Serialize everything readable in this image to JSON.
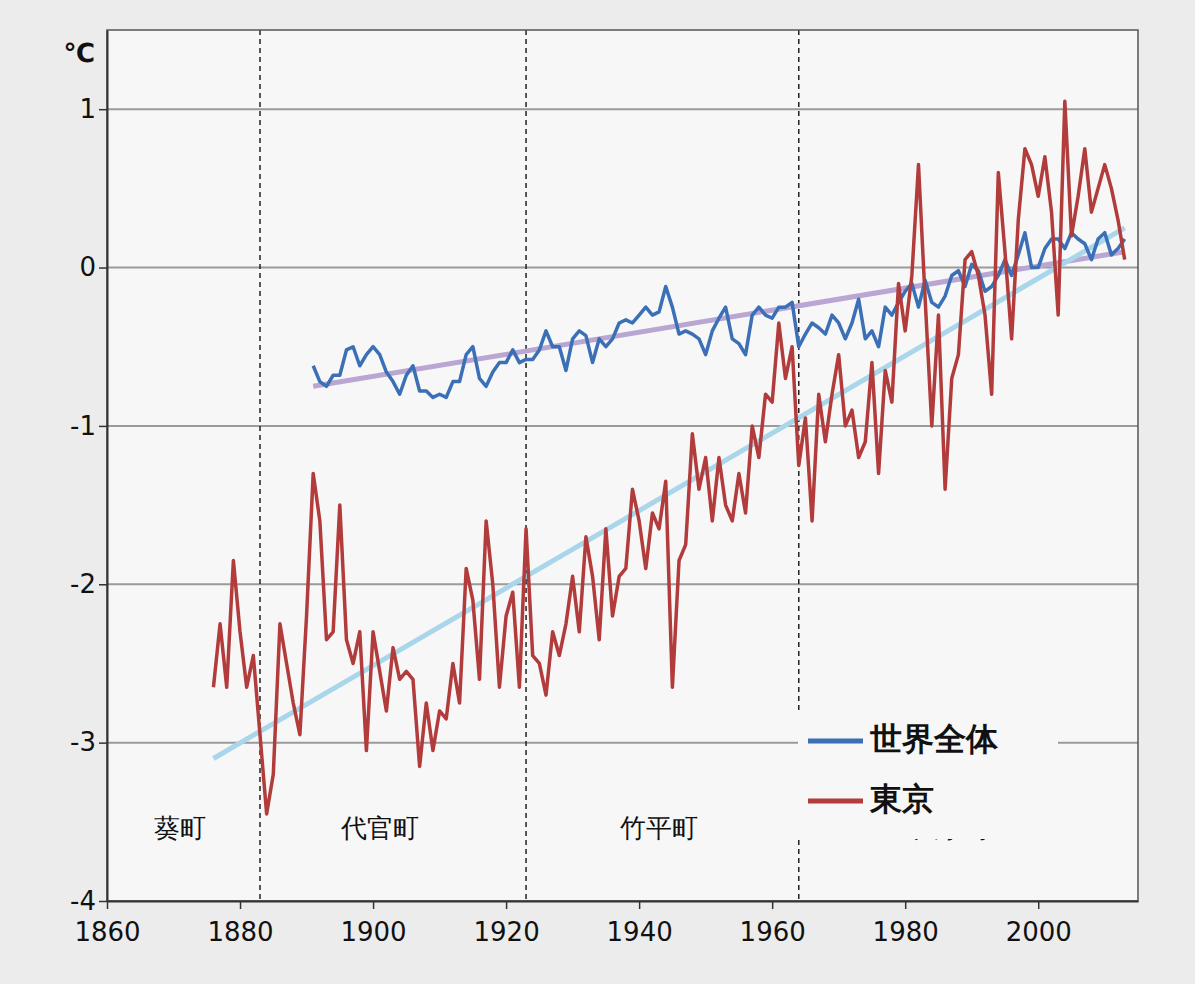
{
  "chart_data": {
    "type": "line",
    "ylabel": "℃",
    "x": [
      1876,
      1877,
      1878,
      1879,
      1880,
      1881,
      1882,
      1883,
      1884,
      1885,
      1886,
      1887,
      1888,
      1889,
      1890,
      1891,
      1892,
      1893,
      1894,
      1895,
      1896,
      1897,
      1898,
      1899,
      1900,
      1901,
      1902,
      1903,
      1904,
      1905,
      1906,
      1907,
      1908,
      1909,
      1910,
      1911,
      1912,
      1913,
      1914,
      1915,
      1916,
      1917,
      1918,
      1919,
      1920,
      1921,
      1922,
      1923,
      1924,
      1925,
      1926,
      1927,
      1928,
      1929,
      1930,
      1931,
      1932,
      1933,
      1934,
      1935,
      1936,
      1937,
      1938,
      1939,
      1940,
      1941,
      1942,
      1943,
      1944,
      1945,
      1946,
      1947,
      1948,
      1949,
      1950,
      1951,
      1952,
      1953,
      1954,
      1955,
      1956,
      1957,
      1958,
      1959,
      1960,
      1961,
      1962,
      1963,
      1964,
      1965,
      1966,
      1967,
      1968,
      1969,
      1970,
      1971,
      1972,
      1973,
      1974,
      1975,
      1976,
      1977,
      1978,
      1979,
      1980,
      1981,
      1982,
      1983,
      1984,
      1985,
      1986,
      1987,
      1988,
      1989,
      1990,
      1991,
      1992,
      1993,
      1994,
      1995,
      1996,
      1997,
      1998,
      1999,
      2000,
      2001,
      2002,
      2003,
      2004,
      2005,
      2006,
      2007,
      2008,
      2009,
      2010,
      2011,
      2012,
      2013
    ],
    "series": [
      {
        "name": "世界全体",
        "color": "#3b6fb6",
        "values": [
          null,
          null,
          null,
          null,
          null,
          null,
          null,
          null,
          null,
          null,
          null,
          null,
          null,
          null,
          null,
          -0.62,
          -0.72,
          -0.75,
          -0.68,
          -0.68,
          -0.52,
          -0.5,
          -0.62,
          -0.55,
          -0.5,
          -0.55,
          -0.66,
          -0.72,
          -0.8,
          -0.68,
          -0.62,
          -0.78,
          -0.78,
          -0.82,
          -0.8,
          -0.82,
          -0.72,
          -0.72,
          -0.55,
          -0.5,
          -0.7,
          -0.75,
          -0.66,
          -0.6,
          -0.6,
          -0.52,
          -0.6,
          -0.58,
          -0.58,
          -0.52,
          -0.4,
          -0.5,
          -0.5,
          -0.65,
          -0.45,
          -0.4,
          -0.43,
          -0.6,
          -0.45,
          -0.5,
          -0.45,
          -0.35,
          -0.33,
          -0.35,
          -0.3,
          -0.25,
          -0.3,
          -0.28,
          -0.12,
          -0.25,
          -0.42,
          -0.4,
          -0.42,
          -0.45,
          -0.55,
          -0.4,
          -0.32,
          -0.25,
          -0.45,
          -0.48,
          -0.55,
          -0.3,
          -0.25,
          -0.3,
          -0.32,
          -0.25,
          -0.25,
          -0.22,
          -0.5,
          -0.42,
          -0.35,
          -0.38,
          -0.42,
          -0.3,
          -0.35,
          -0.45,
          -0.35,
          -0.2,
          -0.45,
          -0.4,
          -0.5,
          -0.25,
          -0.3,
          -0.22,
          -0.15,
          -0.1,
          -0.25,
          -0.08,
          -0.22,
          -0.25,
          -0.18,
          -0.05,
          -0.02,
          -0.12,
          0.02,
          -0.02,
          -0.15,
          -0.12,
          -0.05,
          0.05,
          -0.05,
          0.08,
          0.22,
          0.0,
          0.0,
          0.12,
          0.18,
          0.18,
          0.12,
          0.22,
          0.18,
          0.15,
          0.05,
          0.18,
          0.22,
          0.08,
          0.12,
          0.18
        ]
      },
      {
        "name": "東京",
        "color": "#b23b3b",
        "values": [
          -2.65,
          -2.25,
          -2.65,
          -1.85,
          -2.3,
          -2.65,
          -2.45,
          -2.95,
          -3.45,
          -3.2,
          -2.25,
          -2.5,
          -2.75,
          -2.95,
          -2.2,
          -1.3,
          -1.6,
          -2.35,
          -2.3,
          -1.5,
          -2.35,
          -2.5,
          -2.3,
          -3.05,
          -2.3,
          -2.55,
          -2.8,
          -2.4,
          -2.6,
          -2.55,
          -2.6,
          -3.15,
          -2.75,
          -3.05,
          -2.8,
          -2.85,
          -2.5,
          -2.75,
          -1.9,
          -2.1,
          -2.6,
          -1.6,
          -2.0,
          -2.65,
          -2.2,
          -2.05,
          -2.65,
          -1.65,
          -2.45,
          -2.5,
          -2.7,
          -2.3,
          -2.45,
          -2.25,
          -1.95,
          -2.3,
          -1.7,
          -1.95,
          -2.35,
          -1.65,
          -2.2,
          -1.95,
          -1.9,
          -1.4,
          -1.6,
          -1.9,
          -1.55,
          -1.65,
          -1.35,
          -2.65,
          -1.85,
          -1.75,
          -1.05,
          -1.4,
          -1.2,
          -1.6,
          -1.2,
          -1.5,
          -1.6,
          -1.3,
          -1.55,
          -1.0,
          -1.2,
          -0.8,
          -0.85,
          -0.35,
          -0.7,
          -0.5,
          -1.25,
          -0.95,
          -1.6,
          -0.8,
          -1.1,
          -0.8,
          -0.55,
          -1.0,
          -0.9,
          -1.2,
          -1.1,
          -0.6,
          -1.3,
          -0.65,
          -0.85,
          -0.1,
          -0.4,
          -0.05,
          0.65,
          -0.2,
          -1.0,
          -0.3,
          -1.4,
          -0.7,
          -0.55,
          0.05,
          0.1,
          -0.05,
          -0.3,
          -0.8,
          0.6,
          0.1,
          -0.45,
          0.3,
          0.75,
          0.65,
          0.45,
          0.7,
          0.35,
          -0.3,
          1.05,
          0.2,
          0.45,
          0.75,
          0.35,
          0.5,
          0.65,
          0.5,
          0.3,
          0.05
        ]
      }
    ],
    "trend_lines": [
      {
        "color": "#b9a6d3",
        "x": [
          1891,
          2013
        ],
        "values": [
          -0.75,
          0.1
        ]
      },
      {
        "color": "#a9d6ea",
        "x": [
          1876,
          2013
        ],
        "values": [
          -3.1,
          0.25
        ]
      }
    ],
    "station_boundaries": [
      1883,
      1923,
      1964
    ],
    "station_labels": [
      {
        "text": "葵町",
        "x": 1871,
        "y": -3.55
      },
      {
        "text": "代官町",
        "x": 1901,
        "y": -3.55
      },
      {
        "text": "竹平町",
        "x": 1943,
        "y": -3.55
      },
      {
        "text": "大手町",
        "x": 1987,
        "y": -3.55
      }
    ],
    "xlim": [
      1860,
      2015
    ],
    "xticks": [
      1860,
      1880,
      1900,
      1920,
      1940,
      1960,
      1980,
      2000
    ],
    "ylim": [
      -4,
      1.5
    ],
    "yticks": [
      -4,
      -3,
      -2,
      -1,
      0,
      1
    ],
    "grid": true,
    "legend": "lower right"
  }
}
